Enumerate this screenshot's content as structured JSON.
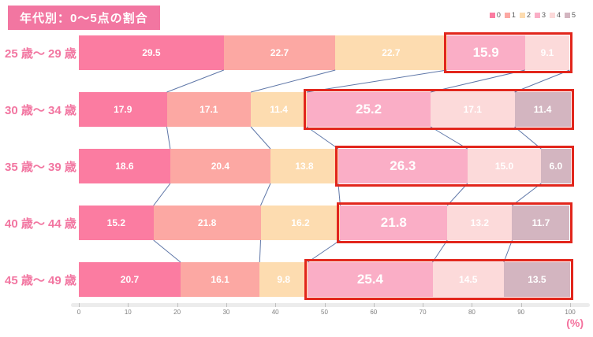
{
  "chart_data": {
    "type": "bar",
    "variant": "horizontal-stacked",
    "title": "年代別：0～5点の割合",
    "unit_label": "(%)",
    "legend": [
      "0",
      "1",
      "2",
      "3",
      "4",
      "5"
    ],
    "series_colors": [
      "#fb7ca1",
      "#fca8a3",
      "#fddcb0",
      "#faaec6",
      "#fcdada",
      "#d3b5c0"
    ],
    "xlim": [
      0,
      100
    ],
    "x_ticks": [
      0,
      10,
      20,
      30,
      40,
      50,
      60,
      70,
      80,
      90,
      100
    ],
    "rows": [
      {
        "label": "25 歳～ 29 歳",
        "values": [
          29.5,
          22.7,
          22.7,
          15.9,
          9.1,
          0.0
        ],
        "highlight_from_segment": 3
      },
      {
        "label": "30 歳～ 34 歳",
        "values": [
          17.9,
          17.1,
          11.4,
          25.2,
          17.1,
          11.4
        ],
        "highlight_from_segment": 3
      },
      {
        "label": "35 歳～ 39 歳",
        "values": [
          18.6,
          20.4,
          13.8,
          26.3,
          15.0,
          6.0
        ],
        "highlight_from_segment": 3
      },
      {
        "label": "40 歳～ 44 歳",
        "values": [
          15.2,
          21.8,
          16.2,
          21.8,
          13.2,
          11.7
        ],
        "highlight_from_segment": 3
      },
      {
        "label": "45 歳～ 49 歳",
        "values": [
          20.7,
          16.1,
          9.8,
          25.4,
          14.5,
          13.5
        ],
        "highlight_from_segment": 3
      }
    ],
    "emphasized_segment_index": 3,
    "colors": {
      "title_bg": "#f276a1",
      "row_label": "#f276a1",
      "highlight_box": "#e2261c",
      "connector": "#5f77a8",
      "axis_text": "#7f7f7f",
      "axis_strip": "#ececec",
      "unit_label": "#f4719d",
      "segment_text": "#ffffff"
    }
  }
}
